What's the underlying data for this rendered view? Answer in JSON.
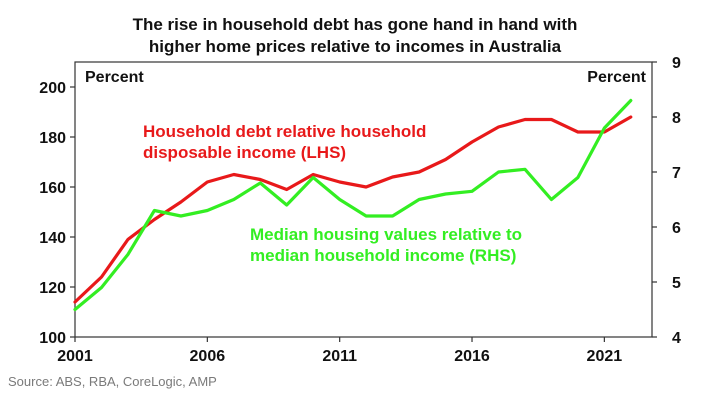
{
  "chart_data": {
    "type": "line",
    "title": "The rise in household debt has gone hand in hand with higher home prices relative to incomes in Australia",
    "title_lines": [
      "The rise in household debt has gone hand in hand with",
      "higher home prices relative to incomes in Australia"
    ],
    "left_axis_label": "Percent",
    "right_axis_label": "Percent",
    "x_ticks": [
      "2001",
      "2006",
      "2011",
      "2016",
      "2021"
    ],
    "y_left_ticks": [
      "100",
      "120",
      "140",
      "160",
      "180",
      "200"
    ],
    "y_right_ticks": [
      "4",
      "5",
      "6",
      "7",
      "8",
      "9"
    ],
    "x_range": [
      2001,
      2022.8
    ],
    "y_left_range": [
      100,
      210
    ],
    "y_right_range": [
      4,
      9
    ],
    "grid": false,
    "series": [
      {
        "label_lines": [
          "Household debt relative household",
          "disposable income (LHS)"
        ],
        "axis": "left",
        "color": "#e8191a",
        "x": [
          2001,
          2002,
          2003,
          2004,
          2005,
          2006,
          2007,
          2008,
          2009,
          2010,
          2011,
          2012,
          2013,
          2014,
          2015,
          2016,
          2017,
          2018,
          2019,
          2020,
          2021,
          2022
        ],
        "y": [
          114,
          124,
          139,
          147,
          154,
          162,
          165,
          163,
          159,
          165,
          162,
          160,
          164,
          166,
          171,
          178,
          184,
          187,
          187,
          182,
          182,
          188
        ]
      },
      {
        "label_lines": [
          "Median housing values relative to",
          "median household income (RHS)"
        ],
        "axis": "right",
        "color": "#33ee22",
        "x": [
          2001,
          2002,
          2003,
          2004,
          2005,
          2006,
          2007,
          2008,
          2009,
          2010,
          2011,
          2012,
          2013,
          2014,
          2015,
          2016,
          2017,
          2018,
          2019,
          2020,
          2021,
          2022
        ],
        "y": [
          4.5,
          4.9,
          5.5,
          6.3,
          6.2,
          6.3,
          6.5,
          6.8,
          6.4,
          6.9,
          6.5,
          6.2,
          6.2,
          6.5,
          6.6,
          6.65,
          7.0,
          7.05,
          6.5,
          6.9,
          7.8,
          8.3
        ]
      }
    ]
  },
  "source": "Source: ABS, RBA, CoreLogic, AMP"
}
